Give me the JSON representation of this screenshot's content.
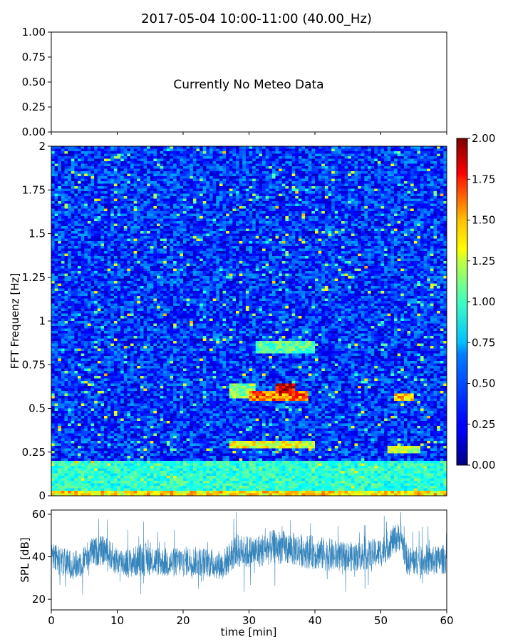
{
  "title": "2017-05-04 10:00-11:00 (40.00_Hz)",
  "chart_data": [
    {
      "type": "line",
      "panel": "meteo",
      "annotation": "Currently No Meteo Data",
      "ylim": [
        0,
        1
      ],
      "yticks": [
        "0.00",
        "0.25",
        "0.50",
        "0.75",
        "1.00"
      ],
      "xlim": [
        0,
        60
      ],
      "series": []
    },
    {
      "type": "heatmap",
      "panel": "spectrogram",
      "ylabel": "FFT Frequenz [Hz]",
      "xlim": [
        0,
        60
      ],
      "ylim": [
        0,
        2
      ],
      "yticks": [
        "0",
        "0.25",
        "0.5",
        "0.75",
        "1",
        "1.25",
        "1.5",
        "1.75",
        "2"
      ],
      "colormap": "jet",
      "color_range": [
        0,
        2
      ],
      "colorbar_ticks": [
        "0.00",
        "0.25",
        "0.50",
        "0.75",
        "1.00",
        "1.25",
        "1.50",
        "1.75",
        "2.00"
      ],
      "background_level": 0.35,
      "hotspots": [
        {
          "t_start": 27,
          "t_end": 31,
          "f_start": 0.56,
          "f_end": 0.64,
          "level": 1.1
        },
        {
          "t_start": 30,
          "t_end": 39,
          "f_start": 0.55,
          "f_end": 0.6,
          "level": 1.7
        },
        {
          "t_start": 34,
          "t_end": 37,
          "f_start": 0.58,
          "f_end": 0.64,
          "level": 2.0
        },
        {
          "t_start": 52,
          "t_end": 55,
          "f_start": 0.54,
          "f_end": 0.58,
          "level": 1.5
        },
        {
          "t_start": 27,
          "t_end": 40,
          "f_start": 0.27,
          "f_end": 0.32,
          "level": 1.3
        },
        {
          "t_start": 51,
          "t_end": 56,
          "f_start": 0.25,
          "f_end": 0.29,
          "level": 1.2
        },
        {
          "t_start": 31,
          "t_end": 40,
          "f_start": 0.82,
          "f_end": 0.88,
          "level": 1.0
        },
        {
          "t_start": 0,
          "t_end": 60,
          "f_start": 0.0,
          "f_end": 0.03,
          "level": 1.4
        },
        {
          "t_start": 0,
          "t_end": 60,
          "f_start": 0.03,
          "f_end": 0.2,
          "level": 0.9
        }
      ]
    },
    {
      "type": "line",
      "panel": "spl",
      "xlabel": "time [min]",
      "ylabel": "SPL [dB]",
      "xlim": [
        0,
        60
      ],
      "ylim": [
        15,
        62
      ],
      "xticks": [
        "0",
        "10",
        "20",
        "30",
        "40",
        "50",
        "60"
      ],
      "yticks": [
        "20",
        "40",
        "60"
      ],
      "color": "#1f77b4",
      "series": [
        {
          "x": [
            0,
            2,
            4,
            6,
            8,
            10,
            12,
            14,
            16,
            18,
            20,
            22,
            24,
            26,
            28,
            30,
            32,
            34,
            36,
            38,
            40,
            42,
            44,
            46,
            48,
            50,
            52,
            53,
            54,
            56,
            58,
            60
          ],
          "mean": [
            40,
            37,
            36,
            42,
            43,
            38,
            37,
            39,
            38,
            37,
            38,
            38,
            37,
            36,
            43,
            42,
            43,
            45,
            44,
            43,
            42,
            41,
            40,
            40,
            41,
            42,
            48,
            50,
            38,
            38,
            38,
            39
          ],
          "spread": [
            7,
            7,
            7,
            7,
            7,
            7,
            7,
            8,
            7,
            7,
            7,
            7,
            7,
            7,
            8,
            8,
            8,
            8,
            8,
            8,
            8,
            8,
            7,
            7,
            7,
            7,
            7,
            7,
            7,
            7,
            7,
            7
          ]
        }
      ]
    }
  ]
}
